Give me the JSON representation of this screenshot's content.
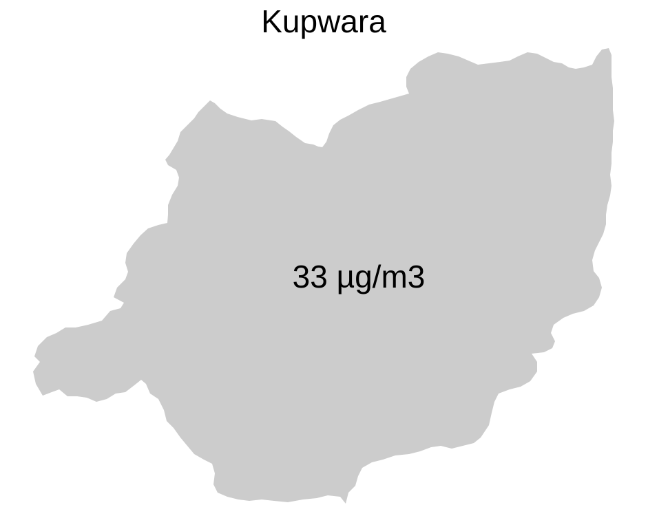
{
  "map": {
    "title": "Kupwara",
    "region_name": "Kupwara",
    "value_label": "33 µg/m3",
    "value": 33,
    "unit": "µg/m3"
  },
  "colors": {
    "background": "#ffffff",
    "region_fill": "#cccccc",
    "text": "#000000"
  }
}
